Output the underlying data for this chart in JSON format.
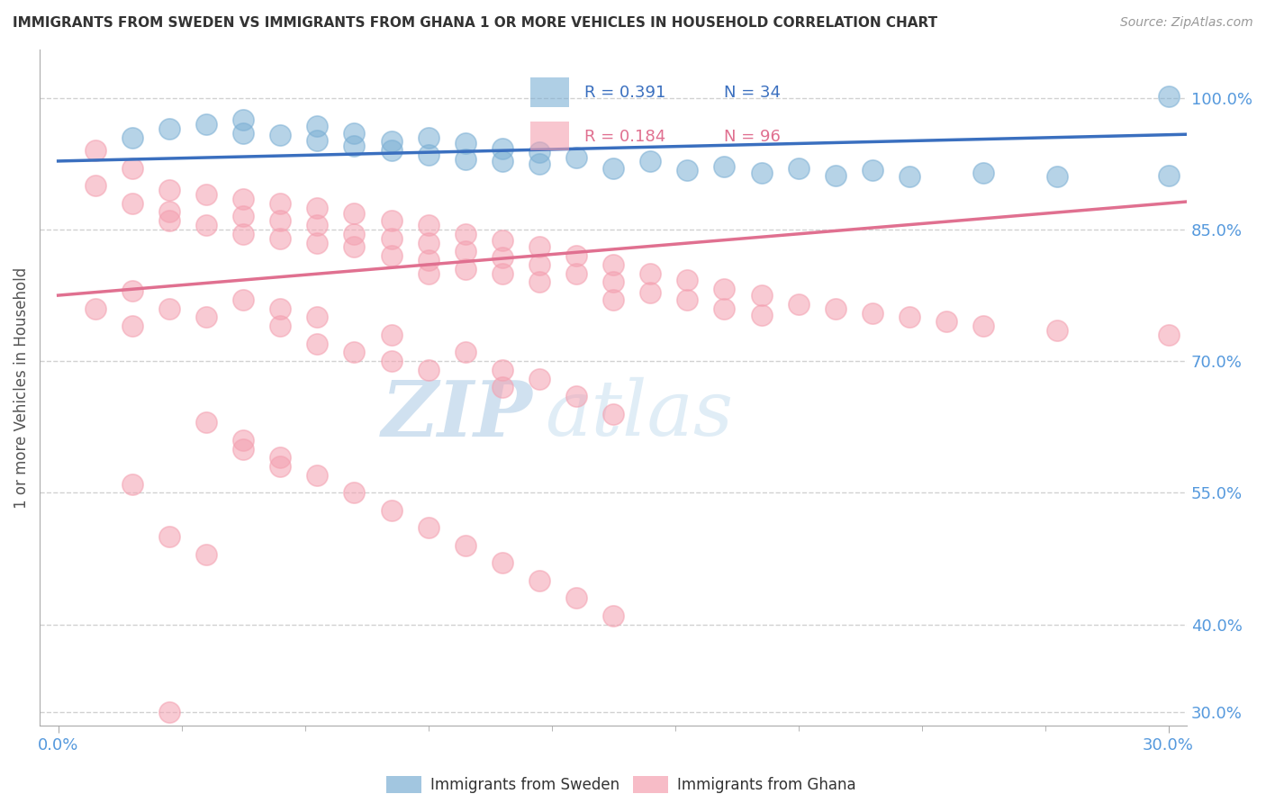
{
  "title": "IMMIGRANTS FROM SWEDEN VS IMMIGRANTS FROM GHANA 1 OR MORE VEHICLES IN HOUSEHOLD CORRELATION CHART",
  "source": "Source: ZipAtlas.com",
  "ylabel": "1 or more Vehicles in Household",
  "legend_bottom": [
    "Immigrants from Sweden",
    "Immigrants from Ghana"
  ],
  "sweden_color": "#7BAFD4",
  "ghana_color": "#F4A0B0",
  "sweden_line_color": "#3A6FBF",
  "ghana_line_color": "#E07090",
  "ytick_color": "#5599DD",
  "R_sweden": 0.391,
  "N_sweden": 34,
  "R_ghana": 0.184,
  "N_ghana": 96,
  "xlim": [
    -0.005,
    0.305
  ],
  "ylim": [
    0.285,
    1.055
  ],
  "yticks": [
    1.0,
    0.85,
    0.7,
    0.55,
    0.4,
    0.3
  ],
  "ytick_labels": [
    "100.0%",
    "85.0%",
    "70.0%",
    "55.0%",
    "40.0%",
    "30.0%"
  ],
  "xtick_left_label": "0.0%",
  "xtick_right_label": "30.0%",
  "watermark_zip": "ZIP",
  "watermark_atlas": "atlas",
  "sweden_x": [
    0.02,
    0.03,
    0.04,
    0.05,
    0.05,
    0.06,
    0.07,
    0.07,
    0.08,
    0.08,
    0.09,
    0.09,
    0.1,
    0.1,
    0.11,
    0.11,
    0.12,
    0.12,
    0.13,
    0.13,
    0.14,
    0.15,
    0.16,
    0.17,
    0.18,
    0.19,
    0.2,
    0.21,
    0.22,
    0.23,
    0.25,
    0.27,
    0.3,
    0.3
  ],
  "sweden_y": [
    0.955,
    0.965,
    0.97,
    0.96,
    0.975,
    0.958,
    0.968,
    0.952,
    0.96,
    0.945,
    0.95,
    0.94,
    0.955,
    0.935,
    0.948,
    0.93,
    0.942,
    0.928,
    0.938,
    0.925,
    0.932,
    0.92,
    0.928,
    0.918,
    0.922,
    0.915,
    0.92,
    0.912,
    0.918,
    0.91,
    0.915,
    0.91,
    0.912,
    1.002
  ],
  "ghana_x": [
    0.01,
    0.01,
    0.02,
    0.02,
    0.03,
    0.03,
    0.03,
    0.04,
    0.04,
    0.05,
    0.05,
    0.05,
    0.06,
    0.06,
    0.06,
    0.07,
    0.07,
    0.07,
    0.08,
    0.08,
    0.08,
    0.09,
    0.09,
    0.09,
    0.1,
    0.1,
    0.1,
    0.1,
    0.11,
    0.11,
    0.11,
    0.12,
    0.12,
    0.12,
    0.13,
    0.13,
    0.13,
    0.14,
    0.14,
    0.15,
    0.15,
    0.15,
    0.16,
    0.16,
    0.17,
    0.17,
    0.18,
    0.18,
    0.19,
    0.19,
    0.2,
    0.21,
    0.22,
    0.23,
    0.24,
    0.25,
    0.27,
    0.3,
    0.01,
    0.02,
    0.02,
    0.03,
    0.04,
    0.05,
    0.06,
    0.06,
    0.07,
    0.07,
    0.08,
    0.09,
    0.09,
    0.1,
    0.11,
    0.12,
    0.12,
    0.13,
    0.14,
    0.15,
    0.04,
    0.05,
    0.06,
    0.07,
    0.08,
    0.09,
    0.1,
    0.11,
    0.12,
    0.13,
    0.14,
    0.15,
    0.03,
    0.04,
    0.05,
    0.06,
    0.03,
    0.02
  ],
  "ghana_y": [
    0.94,
    0.9,
    0.92,
    0.88,
    0.895,
    0.87,
    0.86,
    0.89,
    0.855,
    0.885,
    0.865,
    0.845,
    0.88,
    0.86,
    0.84,
    0.875,
    0.855,
    0.835,
    0.868,
    0.845,
    0.83,
    0.86,
    0.84,
    0.82,
    0.855,
    0.835,
    0.815,
    0.8,
    0.845,
    0.825,
    0.805,
    0.838,
    0.818,
    0.8,
    0.83,
    0.81,
    0.79,
    0.82,
    0.8,
    0.81,
    0.79,
    0.77,
    0.8,
    0.778,
    0.792,
    0.77,
    0.782,
    0.76,
    0.775,
    0.752,
    0.765,
    0.76,
    0.755,
    0.75,
    0.745,
    0.74,
    0.735,
    0.73,
    0.76,
    0.74,
    0.78,
    0.76,
    0.75,
    0.77,
    0.74,
    0.76,
    0.75,
    0.72,
    0.71,
    0.73,
    0.7,
    0.69,
    0.71,
    0.69,
    0.67,
    0.68,
    0.66,
    0.64,
    0.63,
    0.61,
    0.59,
    0.57,
    0.55,
    0.53,
    0.51,
    0.49,
    0.47,
    0.45,
    0.43,
    0.41,
    0.5,
    0.48,
    0.6,
    0.58,
    0.3,
    0.56
  ]
}
